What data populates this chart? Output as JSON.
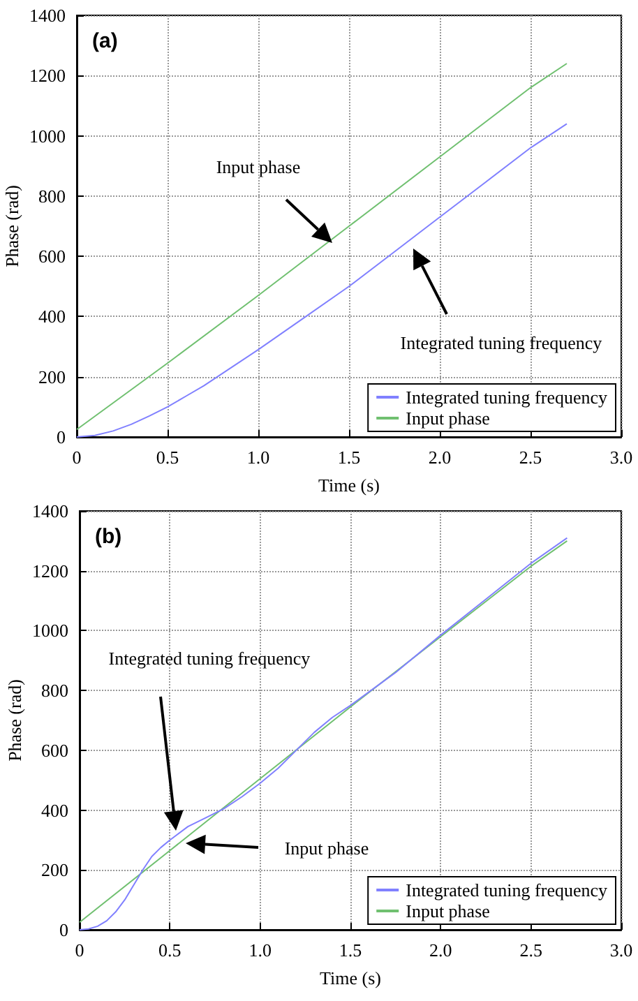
{
  "chart_data": [
    {
      "type": "line",
      "title": "(a)",
      "xlabel": "Time (s)",
      "ylabel": "Phase (rad)",
      "xlim": [
        0,
        3
      ],
      "ylim": [
        0,
        1400
      ],
      "xticks": [
        0,
        0.5,
        {
          "value": 1,
          "label": "1.0"
        },
        1.5,
        {
          "value": 2,
          "label": "2.0"
        },
        2.5,
        {
          "value": 3,
          "label": "3.0"
        }
      ],
      "yticks": [
        0,
        200,
        400,
        600,
        800,
        1000,
        1200,
        1400
      ],
      "grid": true,
      "legend": "bottom right",
      "marker": "none",
      "line_style": "solid",
      "series": [
        {
          "name": "Integrated tuning frequency",
          "color": "#8080ff",
          "x": [
            0,
            0.1,
            0.2,
            0.3,
            0.4,
            0.5,
            0.6,
            0.7,
            0.8,
            0.9,
            1.0,
            1.25,
            1.5,
            1.75,
            2.0,
            2.25,
            2.5,
            2.7
          ],
          "values": [
            0,
            5,
            20,
            42,
            70,
            100,
            135,
            170,
            210,
            250,
            290,
            395,
            500,
            615,
            730,
            845,
            960,
            1040
          ]
        },
        {
          "name": "Input phase",
          "color": "#70c070",
          "x": [
            0,
            0.5,
            1.0,
            1.5,
            2.0,
            2.5,
            2.7
          ],
          "values": [
            25,
            245,
            470,
            700,
            930,
            1160,
            1240
          ]
        }
      ],
      "annotations": [
        "Input phase",
        "Integrated tuning frequency"
      ]
    },
    {
      "type": "line",
      "title": "(b)",
      "xlabel": "Time (s)",
      "ylabel": "Phase (rad)",
      "xlim": [
        0,
        3
      ],
      "ylim": [
        0,
        1400
      ],
      "xticks": [
        0,
        0.5,
        {
          "value": 1,
          "label": "1.0"
        },
        1.5,
        {
          "value": 2,
          "label": "2.0"
        },
        2.5,
        {
          "value": 3,
          "label": "3.0"
        }
      ],
      "yticks": [
        0,
        200,
        400,
        600,
        800,
        1000,
        1200,
        1400
      ],
      "grid": true,
      "legend": "bottom right",
      "marker": "none",
      "line_style": "solid",
      "series": [
        {
          "name": "Integrated tuning frequency",
          "color": "#8080ff",
          "x": [
            0,
            0.05,
            0.1,
            0.15,
            0.2,
            0.25,
            0.3,
            0.35,
            0.4,
            0.45,
            0.5,
            0.6,
            0.7,
            0.8,
            0.9,
            1.0,
            1.1,
            1.2,
            1.3,
            1.4,
            1.5,
            1.75,
            2.0,
            2.25,
            2.5,
            2.7
          ],
          "values": [
            0,
            3,
            12,
            30,
            60,
            100,
            150,
            200,
            245,
            275,
            300,
            345,
            375,
            405,
            445,
            490,
            540,
            600,
            660,
            710,
            750,
            860,
            985,
            1105,
            1225,
            1310
          ]
        },
        {
          "name": "Input phase",
          "color": "#70c070",
          "x": [
            0,
            0.5,
            1.0,
            1.5,
            2.0,
            2.5,
            2.7
          ],
          "values": [
            25,
            265,
            505,
            745,
            980,
            1215,
            1300
          ]
        }
      ],
      "annotations": [
        "Integrated tuning frequency",
        "Input phase"
      ]
    }
  ]
}
